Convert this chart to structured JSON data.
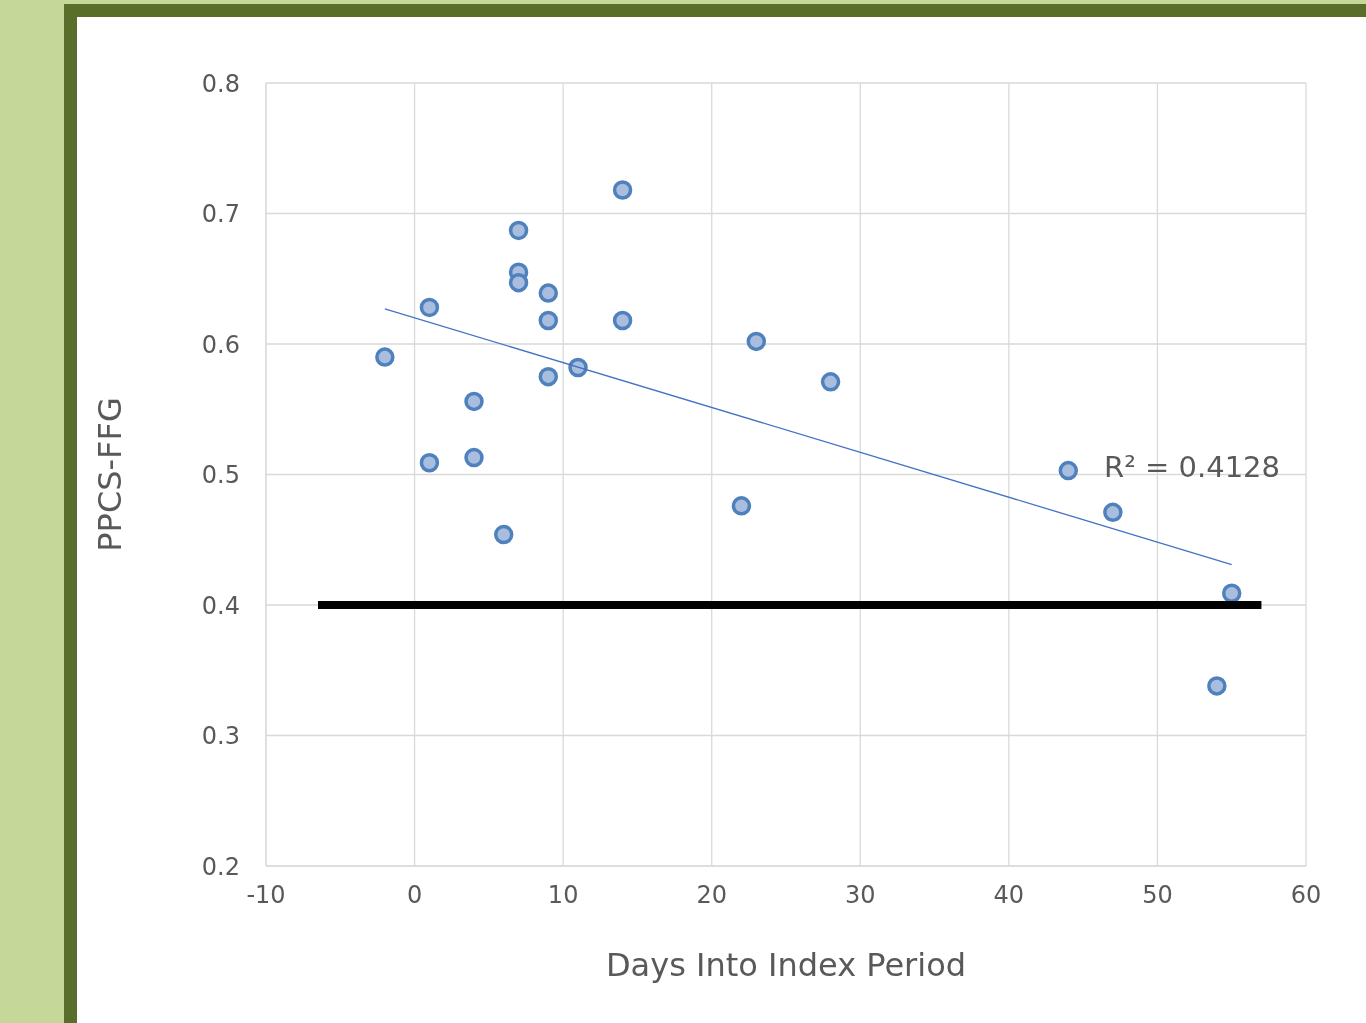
{
  "chart_data": {
    "type": "scatter",
    "xlabel": "Days Into Index Period",
    "ylabel": "PPCS-FFG",
    "xlim": [
      -10,
      60
    ],
    "xticks": [
      -10,
      0,
      10,
      20,
      30,
      40,
      50,
      60
    ],
    "ylim": [
      0.2,
      0.8
    ],
    "yticks": [
      0.2,
      0.3,
      0.4,
      0.5,
      0.6,
      0.7,
      0.8
    ],
    "grid": true,
    "annotations": [
      "R² = 0.4128"
    ],
    "series": [
      {
        "marker": "circle",
        "color": "#4f81bd",
        "x": [
          -2,
          1,
          1,
          4,
          4,
          6,
          7,
          7,
          7,
          9,
          9,
          9,
          11,
          14,
          14,
          22,
          23,
          28,
          44,
          47,
          54,
          55
        ],
        "values": [
          0.59,
          0.628,
          0.509,
          0.556,
          0.513,
          0.454,
          0.687,
          0.655,
          0.647,
          0.639,
          0.618,
          0.575,
          0.582,
          0.718,
          0.618,
          0.476,
          0.602,
          0.571,
          0.503,
          0.471,
          0.338,
          0.409
        ]
      },
      {
        "type": "line",
        "color": "#4472c4",
        "x": [
          -2,
          55
        ],
        "values": [
          0.627,
          0.431
        ]
      },
      {
        "type": "line",
        "color": "#000000",
        "x": [
          -6.5,
          57
        ],
        "values": [
          0.4,
          0.4
        ]
      }
    ]
  }
}
